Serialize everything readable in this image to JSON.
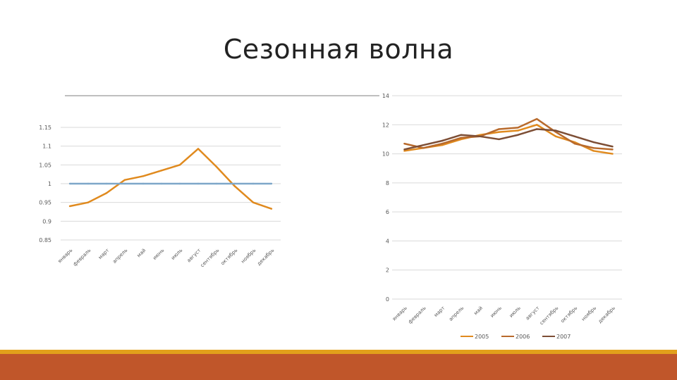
{
  "slide": {
    "title": "Сезонная волна"
  },
  "chart_data": [
    {
      "type": "line",
      "categories": [
        "январь",
        "февраль",
        "март",
        "апрель",
        "май",
        "июнь",
        "июль",
        "август",
        "сентябрь",
        "октябрь",
        "ноябрь",
        "декабрь"
      ],
      "series": [
        {
          "values": [
            0.94,
            0.95,
            0.975,
            1.01,
            1.02,
            1.035,
            1.05,
            1.093,
            1.045,
            0.993,
            0.95,
            0.933
          ],
          "color": "#e08a1e"
        },
        {
          "values": [
            1.0,
            1.0,
            1.0,
            1.0,
            1.0,
            1.0,
            1.0,
            1.0,
            1.0,
            1.0,
            1.0,
            1.0
          ],
          "color": "#7ea7c9"
        }
      ],
      "ylim": [
        0.85,
        1.15
      ],
      "yticks": [
        "0.85",
        "0.9",
        "0.95",
        "1",
        "1.05",
        "1.1",
        "1.15"
      ],
      "grid": true
    },
    {
      "type": "line",
      "categories": [
        "январь",
        "февраль",
        "март",
        "апрель",
        "май",
        "июнь",
        "июль",
        "август",
        "сентябрь",
        "октябрь",
        "ноябрь",
        "декабрь"
      ],
      "series": [
        {
          "name": "2005",
          "values": [
            10.2,
            10.4,
            10.6,
            11.0,
            11.3,
            11.5,
            11.6,
            12.0,
            11.2,
            10.8,
            10.2,
            10.0
          ],
          "color": "#e08a1e"
        },
        {
          "name": "2006",
          "values": [
            10.7,
            10.4,
            10.7,
            11.1,
            11.2,
            11.7,
            11.8,
            12.4,
            11.5,
            10.7,
            10.4,
            10.3
          ],
          "color": "#b86a2c"
        },
        {
          "name": "2007",
          "values": [
            10.3,
            10.6,
            10.9,
            11.3,
            11.2,
            11.0,
            11.3,
            11.7,
            11.6,
            11.2,
            10.8,
            10.5
          ],
          "color": "#7d4e35"
        }
      ],
      "ylim": [
        0,
        14
      ],
      "yticks": [
        "0",
        "2",
        "4",
        "6",
        "8",
        "10",
        "12",
        "14"
      ],
      "grid": true,
      "legend": "bottom"
    }
  ]
}
